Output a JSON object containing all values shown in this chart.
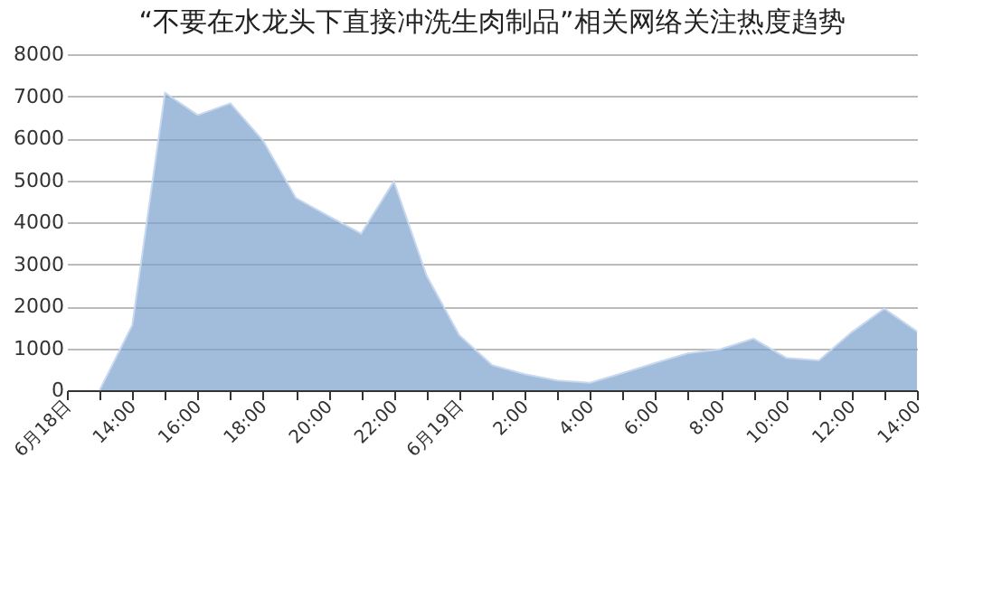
{
  "chart_data": {
    "type": "area",
    "title": "“不要在水龙头下直接冲洗生肉制品”相关网络关注热度趋势",
    "categories": [
      "6月18日",
      null,
      "14:00",
      null,
      "16:00",
      null,
      "18:00",
      null,
      "20:00",
      null,
      "22:00",
      null,
      "6月19日",
      null,
      "2:00",
      null,
      "4:00",
      null,
      "6:00",
      null,
      "8:00",
      null,
      "10:00",
      null,
      "12:00",
      null,
      "14:00"
    ],
    "values": [
      null,
      0,
      1550,
      7080,
      6550,
      6830,
      5940,
      4580,
      4150,
      3730,
      4970,
      2730,
      1310,
      600,
      380,
      230,
      180,
      410,
      650,
      880,
      980,
      1230,
      770,
      710,
      1380,
      1940,
      1400
    ],
    "color": "#7a9fcc",
    "ylim": [
      0,
      8000
    ],
    "yticks": [
      0,
      1000,
      2000,
      3000,
      4000,
      5000,
      6000,
      7000,
      8000
    ],
    "grid": "y"
  }
}
